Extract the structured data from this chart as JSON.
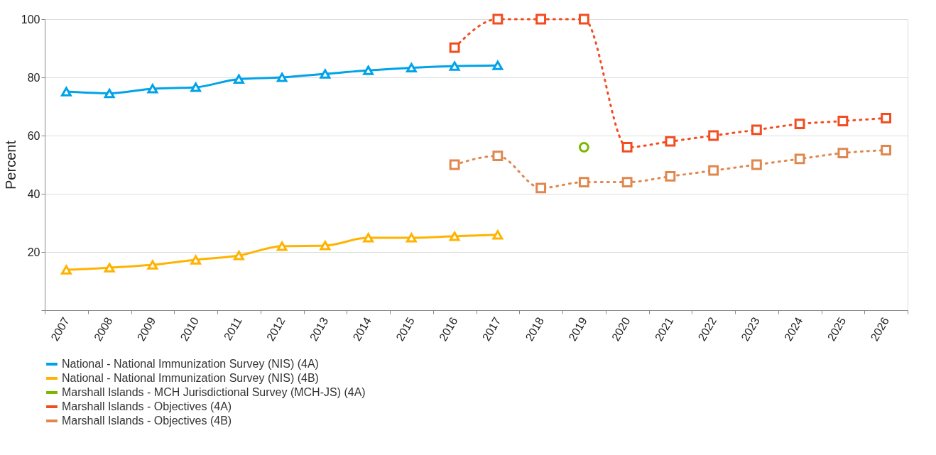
{
  "chart_data": {
    "type": "line",
    "ylabel": "Percent",
    "categories": [
      "2007",
      "2008",
      "2009",
      "2010",
      "2011",
      "2012",
      "2013",
      "2014",
      "2015",
      "2016",
      "2017",
      "2018",
      "2019",
      "2020",
      "2021",
      "2022",
      "2023",
      "2024",
      "2025",
      "2026"
    ],
    "series": [
      {
        "name": "National - National Immunization Survey (NIS) (4A)",
        "color": "#00a3e8",
        "marker": "triangle",
        "line_style": "solid",
        "values": [
          75.1,
          74.5,
          76.1,
          76.6,
          79.4,
          80,
          81.2,
          82.4,
          83.3,
          83.9,
          84.1,
          null,
          null,
          null,
          null,
          null,
          null,
          null,
          null,
          null
        ]
      },
      {
        "name": "National - National Immunization Survey (NIS) (4B)",
        "color": "#ffb300",
        "marker": "triangle",
        "line_style": "solid",
        "values": [
          13.9,
          14.6,
          15.6,
          17.3,
          18.8,
          22,
          22.2,
          24.9,
          24.9,
          25.4,
          25.9,
          null,
          null,
          null,
          null,
          null,
          null,
          null,
          null,
          null
        ]
      },
      {
        "name": "Marshall Islands - MCH Jurisdictional Survey (MCH-JS) (4A)",
        "color": "#7ab800",
        "type": "scatter",
        "marker": "circle",
        "values": [
          null,
          null,
          null,
          null,
          null,
          null,
          null,
          null,
          null,
          null,
          null,
          null,
          56,
          null,
          null,
          null,
          null,
          null,
          null,
          null
        ]
      },
      {
        "name": "Marshall Islands - Objectives (4A)",
        "color": "#f24c1f",
        "marker": "square",
        "line_style": "dotted",
        "values": [
          null,
          null,
          null,
          null,
          null,
          null,
          null,
          null,
          null,
          90.2,
          100,
          100,
          100,
          56,
          58,
          60,
          62,
          64,
          65,
          66
        ]
      },
      {
        "name": "Marshall Islands - Objectives (4B)",
        "color": "#e0874f",
        "marker": "square",
        "line_style": "dotted",
        "values": [
          null,
          null,
          null,
          null,
          null,
          null,
          null,
          null,
          null,
          50,
          53,
          42,
          44,
          44,
          46,
          48,
          50,
          52,
          54,
          55
        ]
      }
    ],
    "ylim": [
      0,
      100
    ],
    "yticks": [
      {
        "value": 0,
        "label": null
      },
      20,
      40,
      60,
      80,
      100
    ],
    "grid": "y",
    "legend": "bottom"
  }
}
